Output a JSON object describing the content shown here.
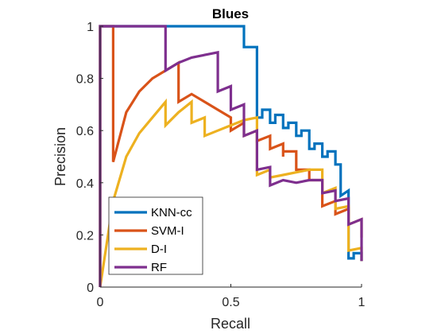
{
  "chart_data": {
    "type": "line",
    "title": "Blues",
    "xlabel": "Recall",
    "ylabel": "Precision",
    "xlim": [
      0,
      1
    ],
    "ylim": [
      0,
      1
    ],
    "xticks": [
      0,
      0.5,
      1
    ],
    "xtick_labels": [
      "0",
      "0.5",
      "1"
    ],
    "yticks": [
      0,
      0.2,
      0.4,
      0.6,
      0.8,
      1
    ],
    "ytick_labels": [
      "0",
      "0.2",
      "0.4",
      "0.6",
      "0.8",
      "1"
    ],
    "grid": false,
    "legend_position": "bottom-left",
    "series": [
      {
        "name": "KNN-cc",
        "color": "#0072BD",
        "points": [
          [
            0,
            0
          ],
          [
            0,
            1
          ],
          [
            0.55,
            1
          ],
          [
            0.55,
            0.92
          ],
          [
            0.6,
            0.92
          ],
          [
            0.6,
            0.65
          ],
          [
            0.62,
            0.65
          ],
          [
            0.62,
            0.68
          ],
          [
            0.65,
            0.68
          ],
          [
            0.65,
            0.63
          ],
          [
            0.67,
            0.63
          ],
          [
            0.67,
            0.66
          ],
          [
            0.7,
            0.66
          ],
          [
            0.7,
            0.61
          ],
          [
            0.72,
            0.61
          ],
          [
            0.72,
            0.63
          ],
          [
            0.75,
            0.63
          ],
          [
            0.75,
            0.58
          ],
          [
            0.77,
            0.58
          ],
          [
            0.77,
            0.6
          ],
          [
            0.8,
            0.6
          ],
          [
            0.8,
            0.53
          ],
          [
            0.82,
            0.53
          ],
          [
            0.82,
            0.55
          ],
          [
            0.85,
            0.55
          ],
          [
            0.85,
            0.5
          ],
          [
            0.87,
            0.5
          ],
          [
            0.87,
            0.52
          ],
          [
            0.9,
            0.52
          ],
          [
            0.9,
            0.47
          ],
          [
            0.92,
            0.47
          ],
          [
            0.92,
            0.35
          ],
          [
            0.95,
            0.37
          ],
          [
            0.95,
            0.11
          ],
          [
            0.97,
            0.11
          ],
          [
            0.97,
            0.13
          ],
          [
            1,
            0.13
          ],
          [
            1,
            0.1
          ]
        ]
      },
      {
        "name": "SVM-I",
        "color": "#D95319",
        "points": [
          [
            0,
            0
          ],
          [
            0,
            1
          ],
          [
            0.05,
            1
          ],
          [
            0.05,
            0.48
          ],
          [
            0.1,
            0.67
          ],
          [
            0.15,
            0.75
          ],
          [
            0.2,
            0.8
          ],
          [
            0.25,
            0.83
          ],
          [
            0.3,
            0.86
          ],
          [
            0.3,
            0.71
          ],
          [
            0.35,
            0.74
          ],
          [
            0.4,
            0.71
          ],
          [
            0.45,
            0.68
          ],
          [
            0.5,
            0.65
          ],
          [
            0.5,
            0.6
          ],
          [
            0.55,
            0.63
          ],
          [
            0.55,
            0.58
          ],
          [
            0.6,
            0.6
          ],
          [
            0.6,
            0.56
          ],
          [
            0.65,
            0.58
          ],
          [
            0.65,
            0.53
          ],
          [
            0.7,
            0.55
          ],
          [
            0.7,
            0.5
          ],
          [
            0.7,
            0.52
          ],
          [
            0.75,
            0.52
          ],
          [
            0.75,
            0.45
          ],
          [
            0.8,
            0.45
          ],
          [
            0.8,
            0.41
          ],
          [
            0.85,
            0.41
          ],
          [
            0.85,
            0.31
          ],
          [
            0.9,
            0.33
          ],
          [
            0.9,
            0.28
          ],
          [
            0.95,
            0.3
          ],
          [
            0.95,
            0.24
          ],
          [
            1,
            0.26
          ],
          [
            1,
            0.19
          ]
        ]
      },
      {
        "name": "D-I",
        "color": "#EDB120",
        "points": [
          [
            0,
            0
          ],
          [
            0,
            1
          ],
          [
            0,
            0
          ],
          [
            0.05,
            0.33
          ],
          [
            0.1,
            0.5
          ],
          [
            0.15,
            0.59
          ],
          [
            0.2,
            0.65
          ],
          [
            0.25,
            0.71
          ],
          [
            0.25,
            0.62
          ],
          [
            0.3,
            0.67
          ],
          [
            0.35,
            0.71
          ],
          [
            0.35,
            0.63
          ],
          [
            0.4,
            0.65
          ],
          [
            0.4,
            0.58
          ],
          [
            0.45,
            0.6
          ],
          [
            0.5,
            0.62
          ],
          [
            0.55,
            0.64
          ],
          [
            0.6,
            0.65
          ],
          [
            0.6,
            0.43
          ],
          [
            0.65,
            0.45
          ],
          [
            0.65,
            0.42
          ],
          [
            0.7,
            0.43
          ],
          [
            0.75,
            0.44
          ],
          [
            0.8,
            0.45
          ],
          [
            0.85,
            0.45
          ],
          [
            0.85,
            0.36
          ],
          [
            0.9,
            0.38
          ],
          [
            0.9,
            0.3
          ],
          [
            0.95,
            0.31
          ],
          [
            0.95,
            0.14
          ],
          [
            1,
            0.15
          ],
          [
            1,
            0.1
          ]
        ]
      },
      {
        "name": "RF",
        "color": "#7E2F8E",
        "points": [
          [
            0,
            0
          ],
          [
            0,
            1
          ],
          [
            0.25,
            1
          ],
          [
            0.25,
            0.83
          ],
          [
            0.3,
            0.86
          ],
          [
            0.35,
            0.88
          ],
          [
            0.4,
            0.89
          ],
          [
            0.45,
            0.9
          ],
          [
            0.45,
            0.75
          ],
          [
            0.5,
            0.77
          ],
          [
            0.5,
            0.68
          ],
          [
            0.55,
            0.7
          ],
          [
            0.55,
            0.58
          ],
          [
            0.6,
            0.6
          ],
          [
            0.6,
            0.45
          ],
          [
            0.65,
            0.46
          ],
          [
            0.65,
            0.39
          ],
          [
            0.7,
            0.41
          ],
          [
            0.75,
            0.4
          ],
          [
            0.8,
            0.41
          ],
          [
            0.85,
            0.41
          ],
          [
            0.85,
            0.36
          ],
          [
            0.9,
            0.37
          ],
          [
            0.9,
            0.33
          ],
          [
            0.95,
            0.34
          ],
          [
            0.95,
            0.24
          ],
          [
            1,
            0.26
          ],
          [
            1,
            0.1
          ]
        ]
      }
    ]
  }
}
